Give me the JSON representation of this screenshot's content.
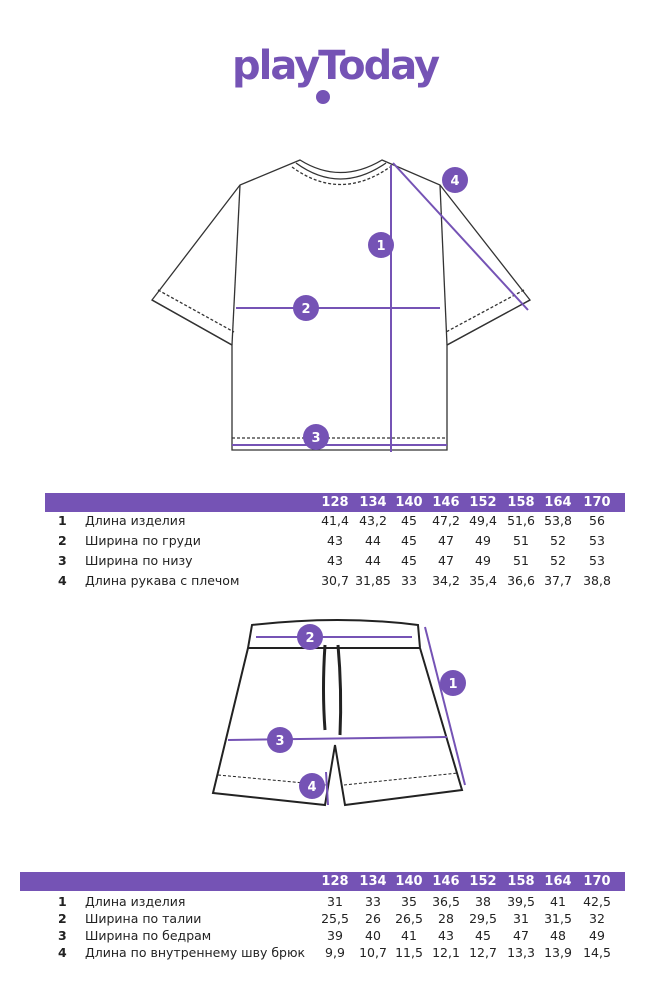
{
  "brand": {
    "logo_text": "playToday",
    "color": "#7553b5"
  },
  "tshirt_table": {
    "sizes": [
      "128",
      "134",
      "140",
      "146",
      "152",
      "158",
      "164",
      "170"
    ],
    "rows": [
      {
        "num": "1",
        "label": "Длина изделия",
        "values": [
          "41,4",
          "43,2",
          "45",
          "47,2",
          "49,4",
          "51,6",
          "53,8",
          "56"
        ]
      },
      {
        "num": "2",
        "label": "Ширина по груди",
        "values": [
          "43",
          "44",
          "45",
          "47",
          "49",
          "51",
          "52",
          "53"
        ]
      },
      {
        "num": "3",
        "label": "Ширина по низу",
        "values": [
          "43",
          "44",
          "45",
          "47",
          "49",
          "51",
          "52",
          "53"
        ]
      },
      {
        "num": "4",
        "label": "Длина рукава с плечом",
        "values": [
          "30,7",
          "31,85",
          "33",
          "34,2",
          "35,4",
          "36,6",
          "37,7",
          "38,8"
        ]
      }
    ]
  },
  "shorts_table": {
    "sizes": [
      "128",
      "134",
      "140",
      "146",
      "152",
      "158",
      "164",
      "170"
    ],
    "rows": [
      {
        "num": "1",
        "label": "Длина изделия",
        "values": [
          "31",
          "33",
          "35",
          "36,5",
          "38",
          "39,5",
          "41",
          "42,5"
        ]
      },
      {
        "num": "2",
        "label": "Ширина по талии",
        "values": [
          "25,5",
          "26",
          "26,5",
          "28",
          "29,5",
          "31",
          "31,5",
          "32"
        ]
      },
      {
        "num": "3",
        "label": "Ширина по бедрам",
        "values": [
          "39",
          "40",
          "41",
          "43",
          "45",
          "47",
          "48",
          "49"
        ]
      },
      {
        "num": "4",
        "label": "Длина по внутреннему шву брюк",
        "values": [
          "9,9",
          "10,7",
          "11,5",
          "12,1",
          "12,7",
          "13,3",
          "13,9",
          "14,5"
        ]
      }
    ]
  },
  "tshirt_markers": [
    "1",
    "2",
    "3",
    "4"
  ],
  "shorts_markers": [
    "1",
    "2",
    "3",
    "4"
  ]
}
